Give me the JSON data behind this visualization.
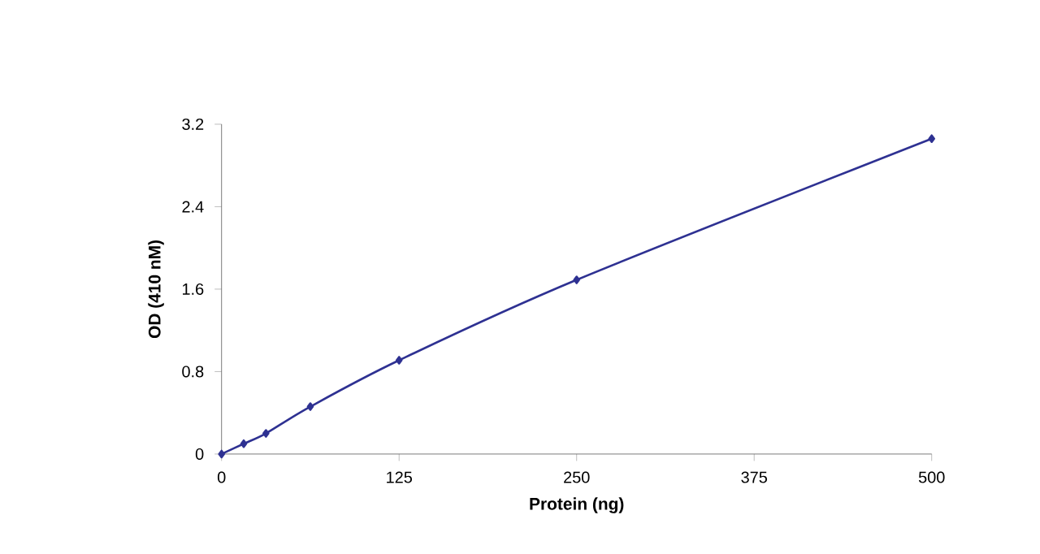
{
  "chart_data": {
    "type": "line",
    "xlabel": "Protein (ng)",
    "ylabel": "OD (410 nM)",
    "x": [
      0,
      15.6,
      31.25,
      62.5,
      125,
      250,
      500
    ],
    "series": [
      {
        "color": "#2e3192",
        "values": [
          0,
          0.1,
          0.2,
          0.46,
          0.91,
          1.69,
          3.06
        ]
      }
    ],
    "xlim": [
      0,
      500
    ],
    "xticks": [
      0,
      125,
      250,
      375,
      500
    ],
    "ylim": [
      0,
      3.2
    ],
    "yticks": [
      0,
      0.8,
      1.6,
      2.4,
      3.2
    ],
    "marker": "diamond",
    "line_style": "solid"
  }
}
